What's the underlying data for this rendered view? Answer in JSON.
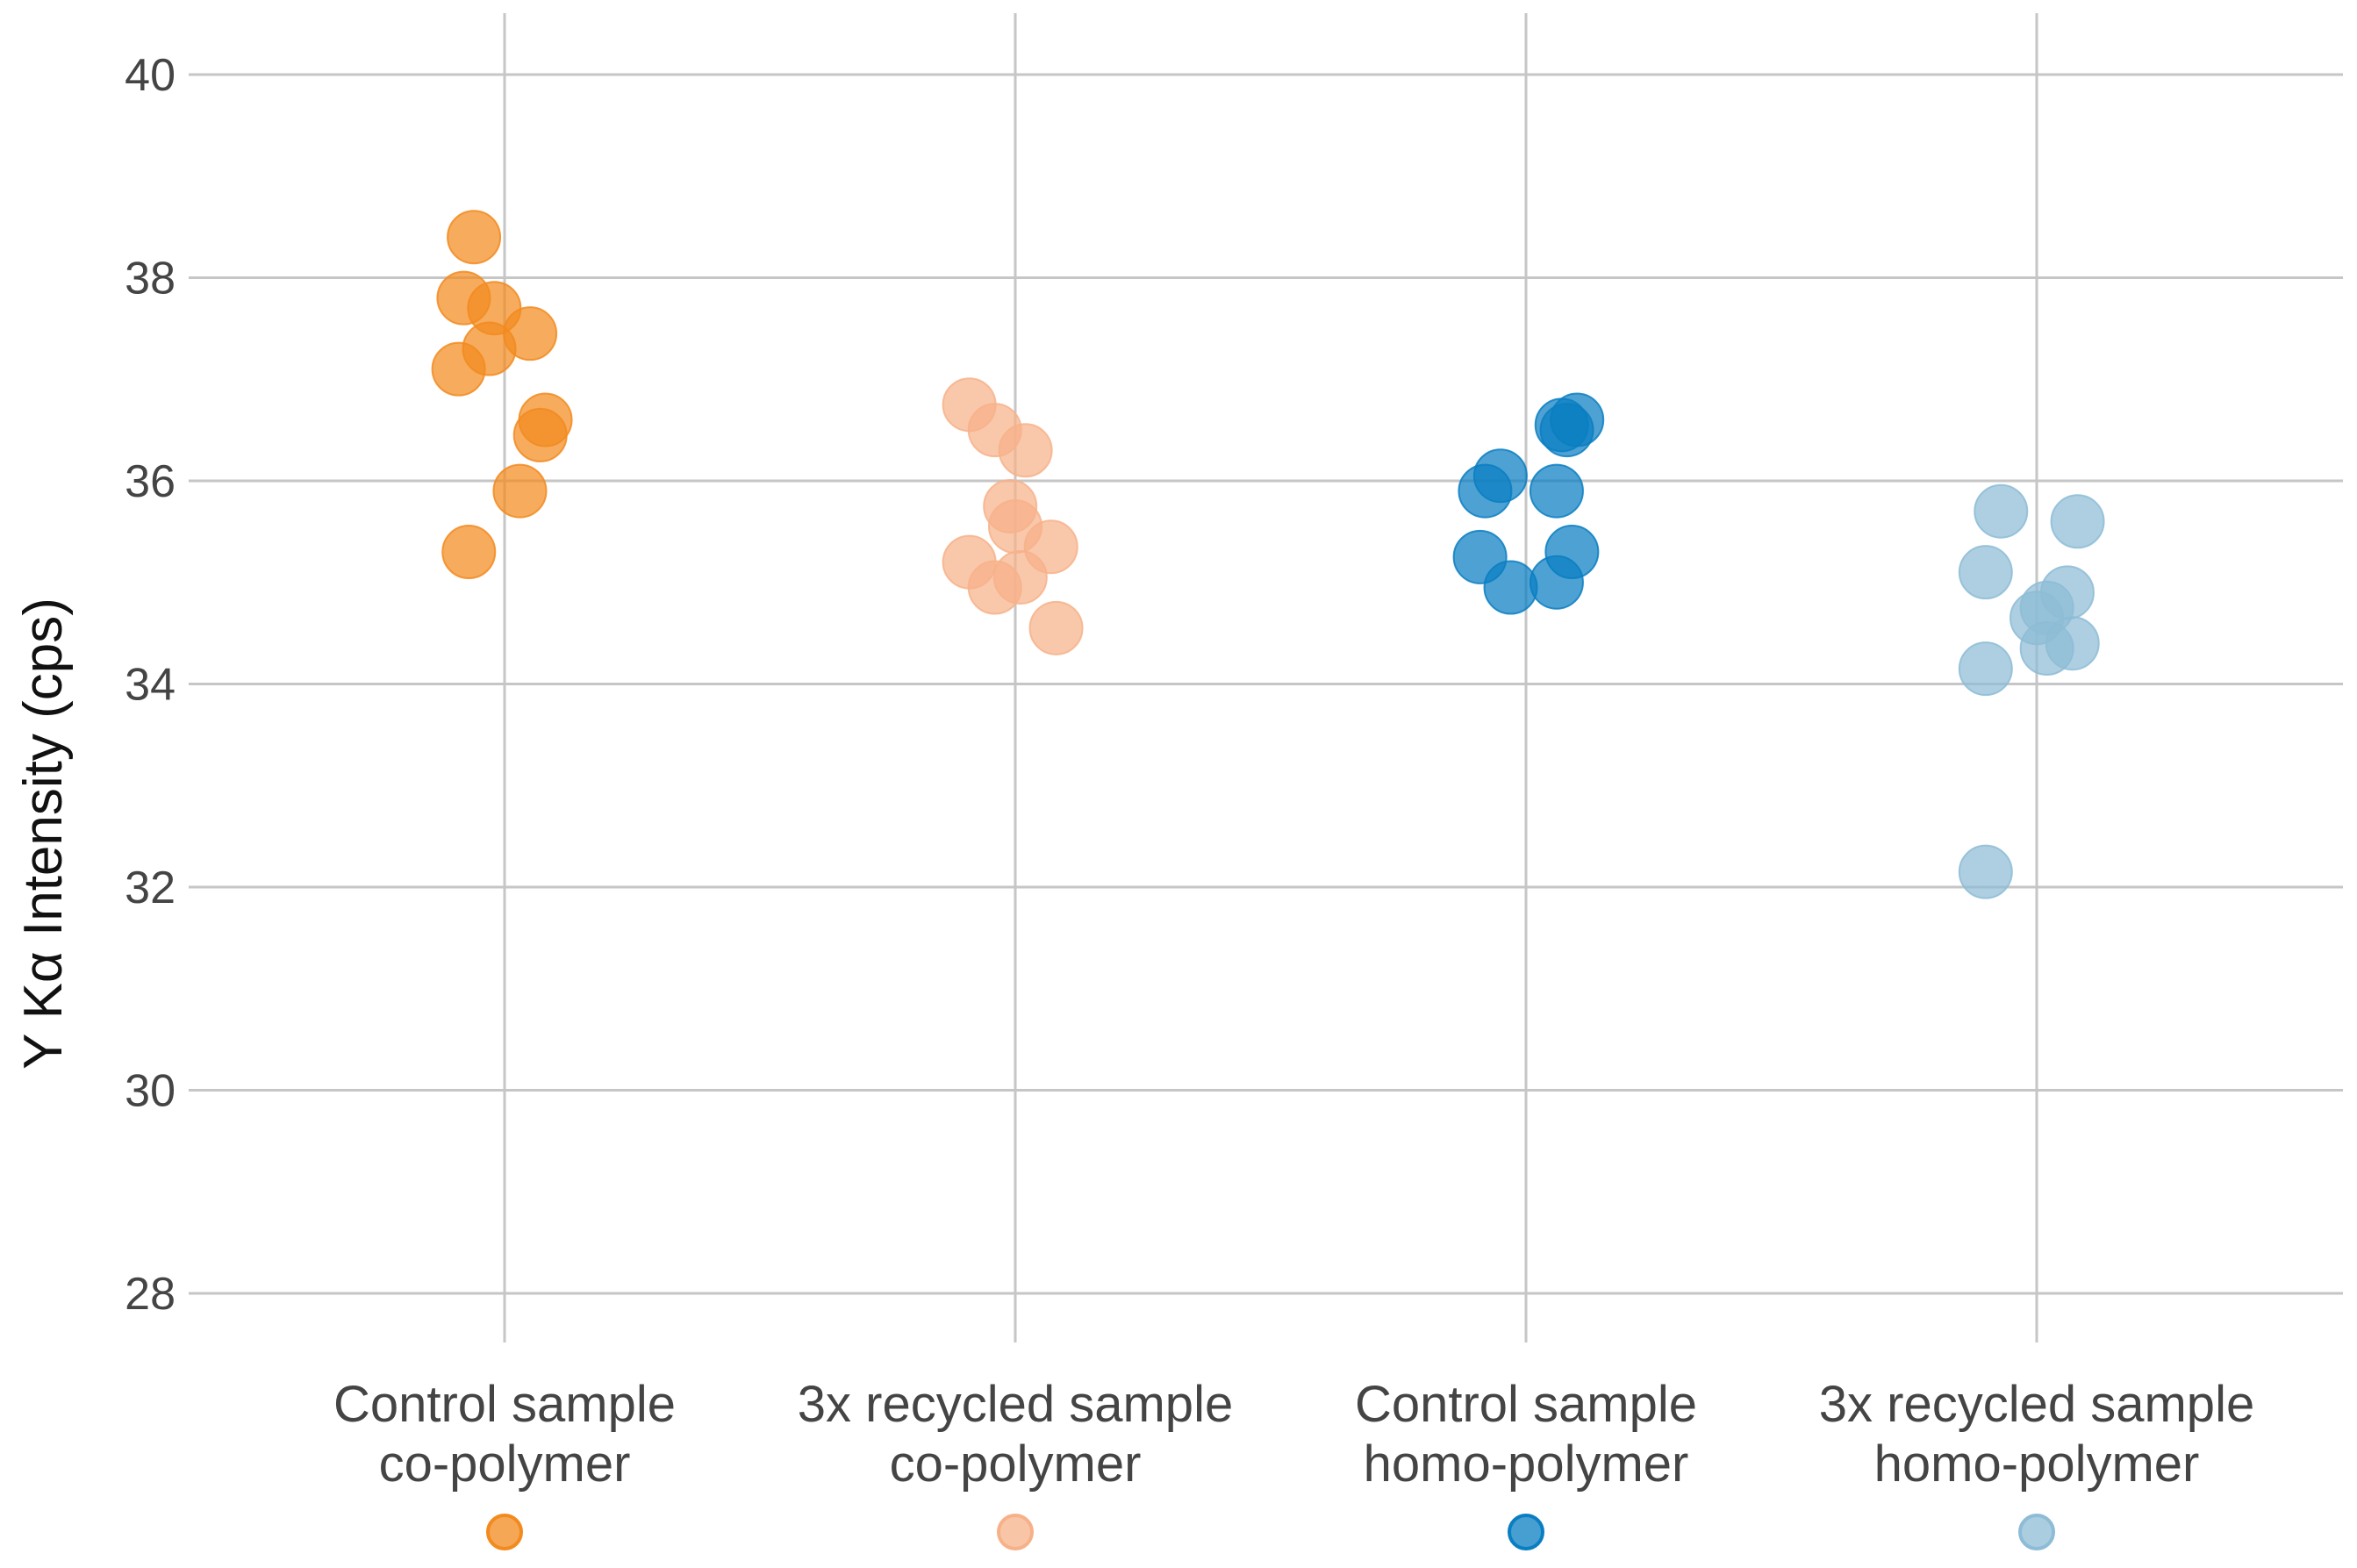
{
  "chart_data": {
    "type": "scatter",
    "title": "",
    "xlabel": "",
    "ylabel": "Y Kα Intensity (cps)",
    "ylim": [
      27.6,
      40.6
    ],
    "yticks": [
      28,
      30,
      32,
      34,
      36,
      38,
      40
    ],
    "grid": true,
    "legend": "below-categories",
    "categories": [
      {
        "line1": "Control sample",
        "line2": "co-polymer"
      },
      {
        "line1": "3x recycled sample",
        "line2": "co-polymer"
      },
      {
        "line1": "Control sample",
        "line2": "homo-polymer"
      },
      {
        "line1": "3x recycled sample",
        "line2": "homo-polymer"
      }
    ],
    "series": [
      {
        "name": "Control sample co-polymer",
        "color": "#F28A1E",
        "points": [
          {
            "jitter": -0.06,
            "y": 38.4
          },
          {
            "jitter": -0.08,
            "y": 37.8
          },
          {
            "jitter": -0.02,
            "y": 37.7
          },
          {
            "jitter": 0.05,
            "y": 37.45
          },
          {
            "jitter": -0.03,
            "y": 37.3
          },
          {
            "jitter": -0.09,
            "y": 37.1
          },
          {
            "jitter": 0.08,
            "y": 36.6
          },
          {
            "jitter": 0.07,
            "y": 36.45
          },
          {
            "jitter": 0.03,
            "y": 35.9
          },
          {
            "jitter": -0.07,
            "y": 35.3
          }
        ]
      },
      {
        "name": "3x recycled sample co-polymer",
        "color": "#F7B189",
        "points": [
          {
            "jitter": -0.09,
            "y": 36.75
          },
          {
            "jitter": -0.04,
            "y": 36.5
          },
          {
            "jitter": 0.02,
            "y": 36.3
          },
          {
            "jitter": -0.01,
            "y": 35.75
          },
          {
            "jitter": 0.0,
            "y": 35.55
          },
          {
            "jitter": 0.07,
            "y": 35.35
          },
          {
            "jitter": -0.09,
            "y": 35.2
          },
          {
            "jitter": 0.01,
            "y": 35.05
          },
          {
            "jitter": -0.04,
            "y": 34.95
          },
          {
            "jitter": 0.08,
            "y": 34.55
          }
        ]
      },
      {
        "name": "Control sample homo-polymer",
        "color": "#0A7EC2",
        "points": [
          {
            "jitter": 0.1,
            "y": 36.6
          },
          {
            "jitter": 0.07,
            "y": 36.55
          },
          {
            "jitter": 0.08,
            "y": 36.5
          },
          {
            "jitter": -0.05,
            "y": 36.05
          },
          {
            "jitter": -0.08,
            "y": 35.9
          },
          {
            "jitter": 0.06,
            "y": 35.9
          },
          {
            "jitter": 0.09,
            "y": 35.3
          },
          {
            "jitter": -0.09,
            "y": 35.25
          },
          {
            "jitter": 0.06,
            "y": 35.0
          },
          {
            "jitter": -0.03,
            "y": 34.95
          }
        ]
      },
      {
        "name": "3x recycled sample homo-polymer",
        "color": "#8DBCD6",
        "points": [
          {
            "jitter": -0.07,
            "y": 35.7
          },
          {
            "jitter": 0.08,
            "y": 35.6
          },
          {
            "jitter": -0.1,
            "y": 35.1
          },
          {
            "jitter": 0.06,
            "y": 34.9
          },
          {
            "jitter": 0.02,
            "y": 34.75
          },
          {
            "jitter": 0.0,
            "y": 34.65
          },
          {
            "jitter": 0.07,
            "y": 34.4
          },
          {
            "jitter": 0.02,
            "y": 34.35
          },
          {
            "jitter": -0.1,
            "y": 34.15
          },
          {
            "jitter": -0.1,
            "y": 32.15
          }
        ]
      }
    ]
  }
}
